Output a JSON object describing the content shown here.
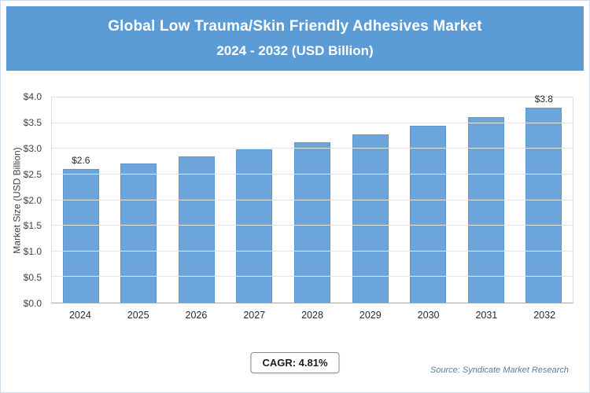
{
  "header": {
    "title_line1": "Global Low Trauma/Skin Friendly Adhesives Market",
    "title_line2": "2024 - 2032 (USD Billion)"
  },
  "chart_data": {
    "type": "bar",
    "title": "Global Low Trauma/Skin Friendly Adhesives Market 2024 - 2032 (USD Billion)",
    "categories": [
      "2024",
      "2025",
      "2026",
      "2027",
      "2028",
      "2029",
      "2030",
      "2031",
      "2032"
    ],
    "values": [
      2.6,
      2.72,
      2.85,
      2.99,
      3.13,
      3.28,
      3.45,
      3.61,
      3.8
    ],
    "bar_labels": [
      "$2.6",
      null,
      null,
      null,
      null,
      null,
      null,
      null,
      "$3.8"
    ],
    "xlabel": "",
    "ylabel": "Market Size (USD Billion)",
    "ylim": [
      0,
      4.0
    ],
    "yticks": [
      {
        "label": "$0.0",
        "value": 0.0
      },
      {
        "label": "$0.5",
        "value": 0.5
      },
      {
        "label": "$1.0",
        "value": 1.0
      },
      {
        "label": "$1.5",
        "value": 1.5
      },
      {
        "label": "$2.0",
        "value": 2.0
      },
      {
        "label": "$2.5",
        "value": 2.5
      },
      {
        "label": "$3.0",
        "value": 3.0
      },
      {
        "label": "$3.5",
        "value": 3.5
      },
      {
        "label": "$4.0",
        "value": 4.0
      }
    ],
    "grid": true,
    "legend": "none"
  },
  "colors": {
    "header_bg": "#5b9cd6",
    "bar_fill": "#6ba5dc",
    "bar_border": "#5d97d1"
  },
  "footer": {
    "cagr_label": "CAGR: 4.81%",
    "source": "Source: Syndicate Market Research"
  }
}
